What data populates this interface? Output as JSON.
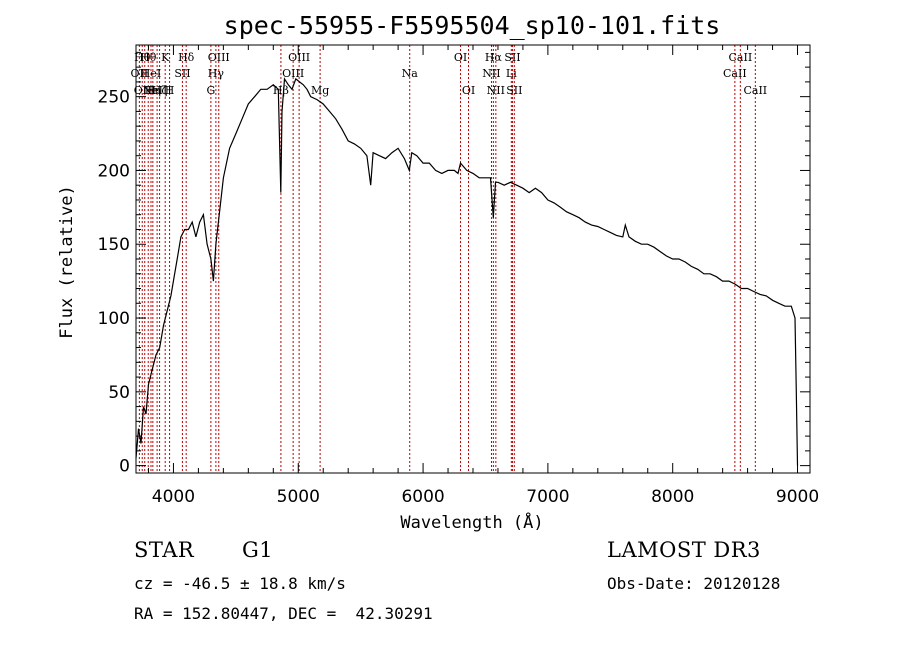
{
  "chart_data": {
    "type": "line",
    "title": "spec-55955-F5595504_sp10-101.fits",
    "xlabel": "Wavelength (Å)",
    "ylabel": "Flux (relative)",
    "xlim": [
      3700,
      9100
    ],
    "ylim": [
      -5,
      285
    ],
    "x_ticks": [
      4000,
      5000,
      6000,
      7000,
      8000,
      9000
    ],
    "y_ticks": [
      0,
      50,
      100,
      150,
      200,
      250
    ],
    "series": [
      {
        "name": "spectrum",
        "x": [
          3700,
          3720,
          3740,
          3760,
          3780,
          3800,
          3830,
          3860,
          3890,
          3920,
          3950,
          3980,
          4000,
          4030,
          4060,
          4090,
          4120,
          4150,
          4180,
          4210,
          4240,
          4270,
          4300,
          4320,
          4340,
          4360,
          4400,
          4450,
          4500,
          4550,
          4600,
          4650,
          4700,
          4750,
          4800,
          4840,
          4860,
          4870,
          4890,
          4920,
          4950,
          4980,
          5010,
          5040,
          5070,
          5100,
          5150,
          5200,
          5250,
          5300,
          5350,
          5400,
          5450,
          5500,
          5550,
          5580,
          5600,
          5650,
          5700,
          5750,
          5800,
          5850,
          5890,
          5910,
          5950,
          6000,
          6050,
          6100,
          6150,
          6200,
          6250,
          6280,
          6300,
          6350,
          6400,
          6450,
          6500,
          6540,
          6563,
          6580,
          6600,
          6650,
          6700,
          6750,
          6800,
          6850,
          6900,
          6950,
          7000,
          7050,
          7100,
          7150,
          7200,
          7250,
          7300,
          7350,
          7400,
          7450,
          7500,
          7550,
          7600,
          7620,
          7650,
          7700,
          7750,
          7800,
          7850,
          7900,
          7950,
          8000,
          8050,
          8100,
          8150,
          8200,
          8250,
          8300,
          8350,
          8400,
          8450,
          8500,
          8550,
          8600,
          8650,
          8700,
          8750,
          8800,
          8850,
          8900,
          8950,
          8980,
          8990,
          9000
        ],
        "values": [
          5,
          25,
          15,
          40,
          35,
          55,
          65,
          75,
          80,
          95,
          105,
          115,
          125,
          140,
          155,
          160,
          160,
          165,
          155,
          165,
          170,
          150,
          140,
          125,
          150,
          165,
          195,
          215,
          225,
          235,
          245,
          250,
          255,
          255,
          258,
          255,
          185,
          240,
          262,
          258,
          255,
          262,
          260,
          258,
          255,
          250,
          248,
          245,
          240,
          235,
          228,
          220,
          218,
          215,
          210,
          190,
          212,
          210,
          208,
          212,
          215,
          208,
          200,
          212,
          210,
          205,
          205,
          200,
          198,
          200,
          200,
          198,
          205,
          200,
          198,
          195,
          195,
          195,
          168,
          192,
          192,
          190,
          192,
          190,
          188,
          185,
          188,
          185,
          180,
          178,
          175,
          172,
          170,
          168,
          165,
          163,
          162,
          160,
          158,
          156,
          155,
          163,
          155,
          152,
          150,
          150,
          148,
          145,
          142,
          140,
          140,
          138,
          135,
          133,
          130,
          130,
          128,
          125,
          125,
          123,
          120,
          120,
          118,
          116,
          115,
          112,
          110,
          108,
          108,
          100,
          50,
          0
        ]
      }
    ],
    "line_markers": [
      {
        "wl": 3727,
        "label": "OII",
        "row": 1
      },
      {
        "wl": 3750,
        "label": "Hθ",
        "row": 0
      },
      {
        "wl": 3770,
        "label": "OIII",
        "row": 2
      },
      {
        "wl": 3798,
        "label": "Hθ",
        "row": 0
      },
      {
        "wl": 3820,
        "label": "HeI",
        "row": 1
      },
      {
        "wl": 3835,
        "label": "Hη",
        "row": 2
      },
      {
        "wl": 3869,
        "label": "NeIII",
        "row": 2
      },
      {
        "wl": 3889,
        "label": "Hζ",
        "row": 2
      },
      {
        "wl": 3934,
        "label": "K",
        "row": 0
      },
      {
        "wl": 3969,
        "label": "H",
        "row": 2
      },
      {
        "wl": 4072,
        "label": "SII",
        "row": 1
      },
      {
        "wl": 4102,
        "label": "Hδ",
        "row": 0
      },
      {
        "wl": 4300,
        "label": "G",
        "row": 2
      },
      {
        "wl": 4340,
        "label": "Hγ",
        "row": 1
      },
      {
        "wl": 4363,
        "label": "OIII",
        "row": 0
      },
      {
        "wl": 4861,
        "label": "Hβ",
        "row": 2
      },
      {
        "wl": 4959,
        "label": "OIII",
        "row": 1
      },
      {
        "wl": 5007,
        "label": "OIII",
        "row": 0
      },
      {
        "wl": 5175,
        "label": "Mg",
        "row": 2
      },
      {
        "wl": 5893,
        "label": "Na",
        "row": 1
      },
      {
        "wl": 6300,
        "label": "OI",
        "row": 0
      },
      {
        "wl": 6364,
        "label": "OI",
        "row": 2
      },
      {
        "wl": 6548,
        "label": "NII",
        "row": 1
      },
      {
        "wl": 6563,
        "label": "Hα",
        "row": 0
      },
      {
        "wl": 6583,
        "label": "NII",
        "row": 2
      },
      {
        "wl": 6707,
        "label": "Li",
        "row": 1
      },
      {
        "wl": 6716,
        "label": "SII",
        "row": 0
      },
      {
        "wl": 6731,
        "label": "SII",
        "row": 2
      },
      {
        "wl": 8498,
        "label": "CaII",
        "row": 1
      },
      {
        "wl": 8542,
        "label": "CaII",
        "row": 0
      },
      {
        "wl": 8662,
        "label": "CaII",
        "row": 2
      }
    ]
  },
  "info": {
    "class": "STAR",
    "subclass": "G1",
    "survey": "LAMOST DR3",
    "cz": "cz = -46.5 ± 18.8 km/s",
    "obs_date": "Obs-Date: 20120128",
    "coords": "RA = 152.80447, DEC =  42.30291"
  },
  "colors": {
    "marker": "#c00000",
    "axis": "#000000",
    "spectrum": "#000000"
  }
}
